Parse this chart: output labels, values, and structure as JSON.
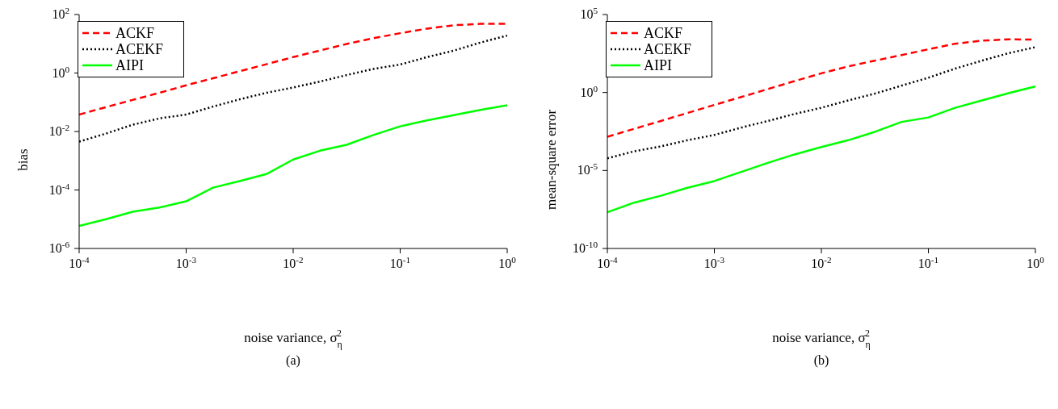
{
  "chart_data": [
    {
      "type": "line",
      "xlabel": "noise variance, σ$_{η}$$^{2}$",
      "ylabel": "bias",
      "annotations": [
        "(a)"
      ],
      "log": "xy",
      "legend": "top left",
      "xlim": [
        0.0001,
        1
      ],
      "ylim": [
        1e-06,
        100
      ],
      "xticks": [
        {
          "value": 0.0001,
          "label": "10$^{-4}$"
        },
        {
          "value": 0.001,
          "label": "10$^{-3}$"
        },
        {
          "value": 0.01,
          "label": "10$^{-2}$"
        },
        {
          "value": 0.1,
          "label": "10$^{-1}$"
        },
        {
          "value": 1,
          "label": "10$^{0}$"
        }
      ],
      "yticks": [
        {
          "value": 1e-06,
          "label": "10$^{-6}$"
        },
        {
          "value": 0.0001,
          "label": "10$^{-4}$"
        },
        {
          "value": 0.01,
          "label": "10$^{-2}$"
        },
        {
          "value": 1,
          "label": "10$^{0}$"
        },
        {
          "value": 100,
          "label": "10$^{2}$"
        }
      ],
      "x": [
        0.0001,
        0.000178,
        0.000316,
        0.000562,
        0.001,
        0.00178,
        0.00316,
        0.00562,
        0.01,
        0.0178,
        0.0316,
        0.0562,
        0.1,
        0.178,
        0.316,
        0.562,
        1
      ],
      "series": [
        {
          "name": "ACKF",
          "color": "#ff0000",
          "line_style": "dashed",
          "values": [
            0.038,
            0.068,
            0.12,
            0.21,
            0.38,
            0.66,
            1.15,
            2.0,
            3.5,
            5.9,
            9.8,
            15.5,
            23,
            33,
            43,
            48,
            48
          ]
        },
        {
          "name": "ACEKF",
          "color": "#000000",
          "line_style": "dotted",
          "values": [
            0.0045,
            0.0085,
            0.017,
            0.028,
            0.038,
            0.071,
            0.126,
            0.21,
            0.32,
            0.51,
            0.85,
            1.38,
            1.95,
            3.5,
            5.8,
            11,
            19
          ]
        },
        {
          "name": "AIPI",
          "color": "#00ff00",
          "line_style": "solid",
          "values": [
            5.9e-06,
            1e-05,
            1.8e-05,
            2.5e-05,
            4.1e-05,
            0.00012,
            0.0002,
            0.00035,
            0.0011,
            0.0022,
            0.0035,
            0.0076,
            0.015,
            0.024,
            0.036,
            0.055,
            0.079
          ]
        }
      ]
    },
    {
      "type": "line",
      "xlabel": "noise variance, σ$_{η}$$^{2}$",
      "ylabel": "mean-square error",
      "annotations": [
        "(b)"
      ],
      "log": "xy",
      "legend": "top left",
      "xlim": [
        0.0001,
        1
      ],
      "ylim": [
        1e-10,
        100000
      ],
      "xticks": [
        {
          "value": 0.0001,
          "label": "10$^{-4}$"
        },
        {
          "value": 0.001,
          "label": "10$^{-3}$"
        },
        {
          "value": 0.01,
          "label": "10$^{-2}$"
        },
        {
          "value": 0.1,
          "label": "10$^{-1}$"
        },
        {
          "value": 1,
          "label": "10$^{0}$"
        }
      ],
      "yticks": [
        {
          "value": 1e-10,
          "label": "10$^{-10}$"
        },
        {
          "value": 1e-05,
          "label": "10$^{-5}$"
        },
        {
          "value": 1,
          "label": "10$^{0}$"
        },
        {
          "value": 100000,
          "label": "10$^{5}$"
        }
      ],
      "x": [
        0.0001,
        0.000178,
        0.000316,
        0.000562,
        0.001,
        0.00178,
        0.00316,
        0.00562,
        0.01,
        0.0178,
        0.0316,
        0.0562,
        0.1,
        0.178,
        0.316,
        0.562,
        1
      ],
      "series": [
        {
          "name": "ACKF",
          "color": "#ff0000",
          "line_style": "dashed",
          "values": [
            0.00145,
            0.0047,
            0.015,
            0.049,
            0.16,
            0.51,
            1.66,
            5.4,
            17,
            47,
            110,
            250,
            590,
            1350,
            2100,
            2600,
            2450
          ]
        },
        {
          "name": "ACEKF",
          "color": "#000000",
          "line_style": "dotted",
          "values": [
            6e-05,
            0.00017,
            0.00035,
            0.00087,
            0.0019,
            0.0056,
            0.015,
            0.042,
            0.105,
            0.31,
            0.85,
            2.75,
            8.9,
            34,
            110,
            330,
            810
          ]
        },
        {
          "name": "AIPI",
          "color": "#00ff00",
          "line_style": "solid",
          "values": [
            2.1e-08,
            8.7e-08,
            2.4e-07,
            7.8e-07,
            2.1e-06,
            8.1e-06,
            3.1e-05,
            0.000107,
            0.00032,
            0.00087,
            0.003,
            0.013,
            0.025,
            0.105,
            0.31,
            0.91,
            2.45
          ]
        }
      ]
    }
  ]
}
